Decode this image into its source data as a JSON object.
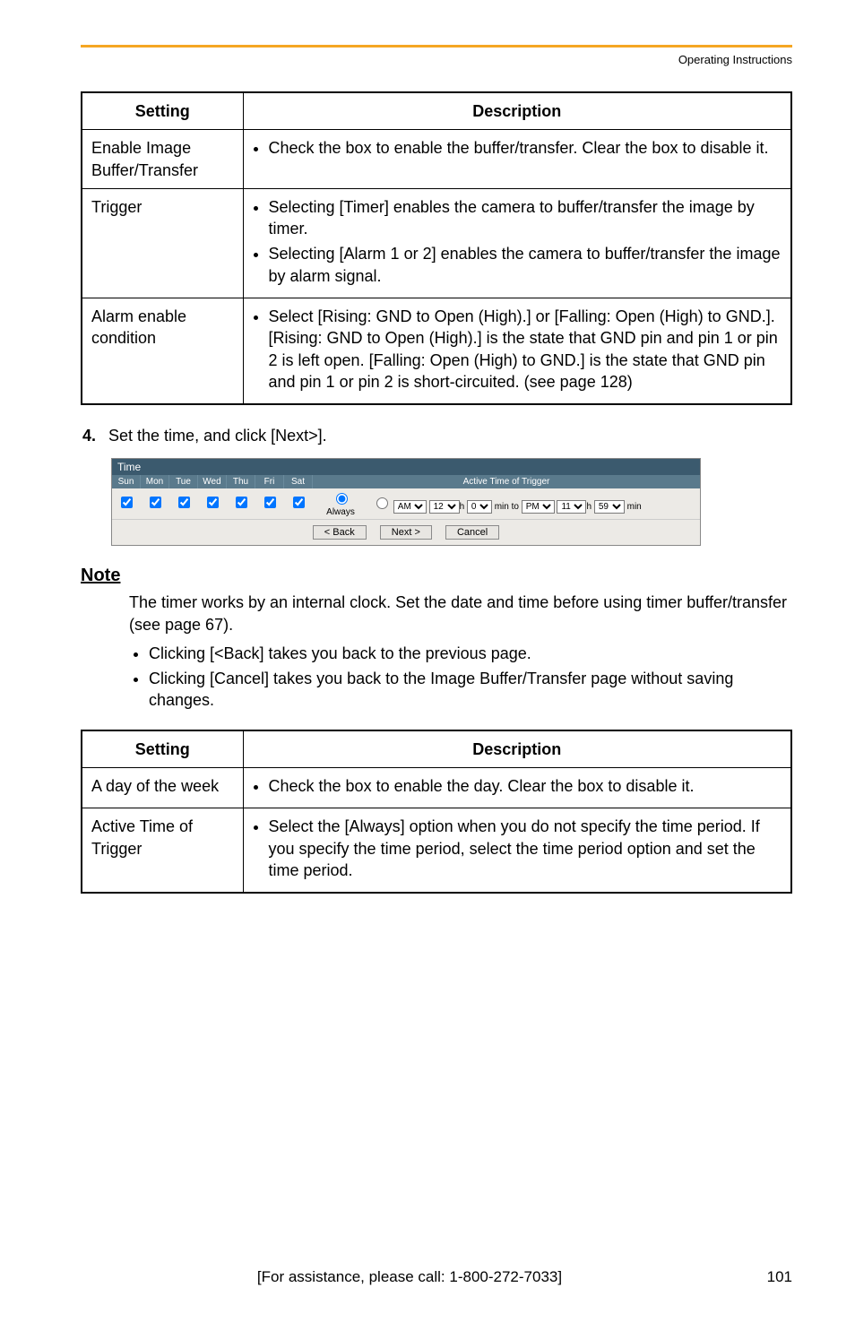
{
  "header": {
    "section": "Operating Instructions"
  },
  "table1": {
    "col_setting": "Setting",
    "col_desc": "Description",
    "rows": [
      {
        "setting": "Enable Image Buffer/Transfer",
        "bullets": [
          "Check the box to enable the buffer/transfer. Clear the box to disable it."
        ]
      },
      {
        "setting": "Trigger",
        "bullets": [
          "Selecting [Timer] enables the camera to buffer/transfer the image by timer.",
          "Selecting [Alarm 1 or 2] enables the camera to buffer/transfer the image by alarm signal."
        ]
      },
      {
        "setting": "Alarm enable condition",
        "bullets": [
          "Select [Rising: GND to Open (High).] or [Falling: Open (High) to GND.]. [Rising: GND to Open (High).] is the state that GND pin and pin 1 or pin 2 is left open. [Falling: Open (High) to GND.] is the state that GND pin and pin 1 or pin 2 is short-circuited. (see page 128)"
        ]
      }
    ]
  },
  "step": {
    "num": "4.",
    "text": "Set the time, and click [Next>]."
  },
  "time_panel": {
    "title": "Time",
    "days": [
      "Sun",
      "Mon",
      "Tue",
      "Wed",
      "Thu",
      "Fri",
      "Sat"
    ],
    "active_header": "Active Time of Trigger",
    "always_label": "Always",
    "ampm_from": "AM",
    "h_from": "12",
    "m_from": "0",
    "range_mid": "min to",
    "ampm_to": "PM",
    "h_to": "11",
    "m_to": "59",
    "range_tail": "min",
    "btn_back": "< Back",
    "btn_next": "Next >",
    "btn_cancel": "Cancel"
  },
  "note": {
    "heading": "Note",
    "body": "The timer works by an internal clock. Set the date and time before using timer buffer/transfer (see page 67).",
    "items": [
      "Clicking [<Back] takes you back to the previous page.",
      "Clicking [Cancel] takes you back to the Image Buffer/Transfer page without saving changes."
    ]
  },
  "table2": {
    "col_setting": "Setting",
    "col_desc": "Description",
    "rows": [
      {
        "setting": "A day of the week",
        "bullets": [
          "Check the box to enable the day. Clear the box to disable it."
        ]
      },
      {
        "setting": "Active Time of Trigger",
        "bullets": [
          "Select the [Always] option when you do not specify the time period. If you specify the time period, select the time period option and set the time period."
        ]
      }
    ]
  },
  "footer": {
    "assist": "[For assistance, please call: 1-800-272-7033]",
    "page": "101"
  },
  "colors": {
    "accent": "#f5a623",
    "panel_title_bg": "#3b5a6e",
    "panel_header_bg": "#5a7a8c",
    "panel_bg": "#eceae6"
  }
}
